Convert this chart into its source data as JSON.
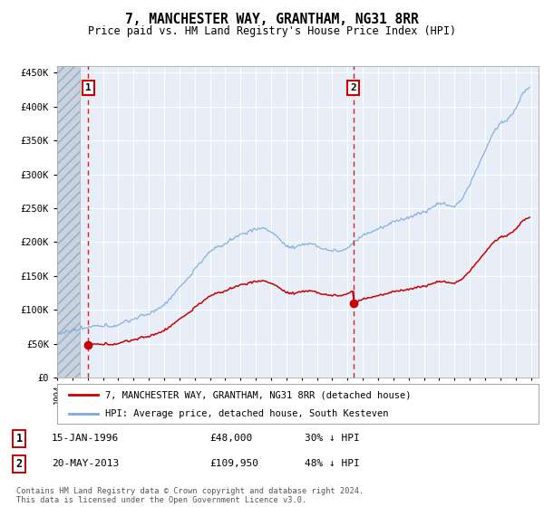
{
  "title": "7, MANCHESTER WAY, GRANTHAM, NG31 8RR",
  "subtitle": "Price paid vs. HM Land Registry's House Price Index (HPI)",
  "bg_color": "#e8eef8",
  "red_line_color": "#cc0000",
  "blue_line_color": "#7aaadd",
  "sale1_date": 1996.04,
  "sale1_price": 48000,
  "sale1_label": "1",
  "sale2_date": 2013.37,
  "sale2_price": 109950,
  "sale2_label": "2",
  "xmin": 1994.0,
  "xmax": 2025.5,
  "ymin": 0,
  "ymax": 460000,
  "yticks": [
    0,
    50000,
    100000,
    150000,
    200000,
    250000,
    300000,
    350000,
    400000,
    450000
  ],
  "ytick_labels": [
    "£0",
    "£50K",
    "£100K",
    "£150K",
    "£200K",
    "£250K",
    "£300K",
    "£350K",
    "£400K",
    "£450K"
  ],
  "legend_line1": "7, MANCHESTER WAY, GRANTHAM, NG31 8RR (detached house)",
  "legend_line2": "HPI: Average price, detached house, South Kesteven",
  "note1_label": "1",
  "note1_date": "15-JAN-1996",
  "note1_price": "£48,000",
  "note1_hpi": "30% ↓ HPI",
  "note2_label": "2",
  "note2_date": "20-MAY-2013",
  "note2_price": "£109,950",
  "note2_hpi": "48% ↓ HPI",
  "footer": "Contains HM Land Registry data © Crown copyright and database right 2024.\nThis data is licensed under the Open Government Licence v3.0."
}
